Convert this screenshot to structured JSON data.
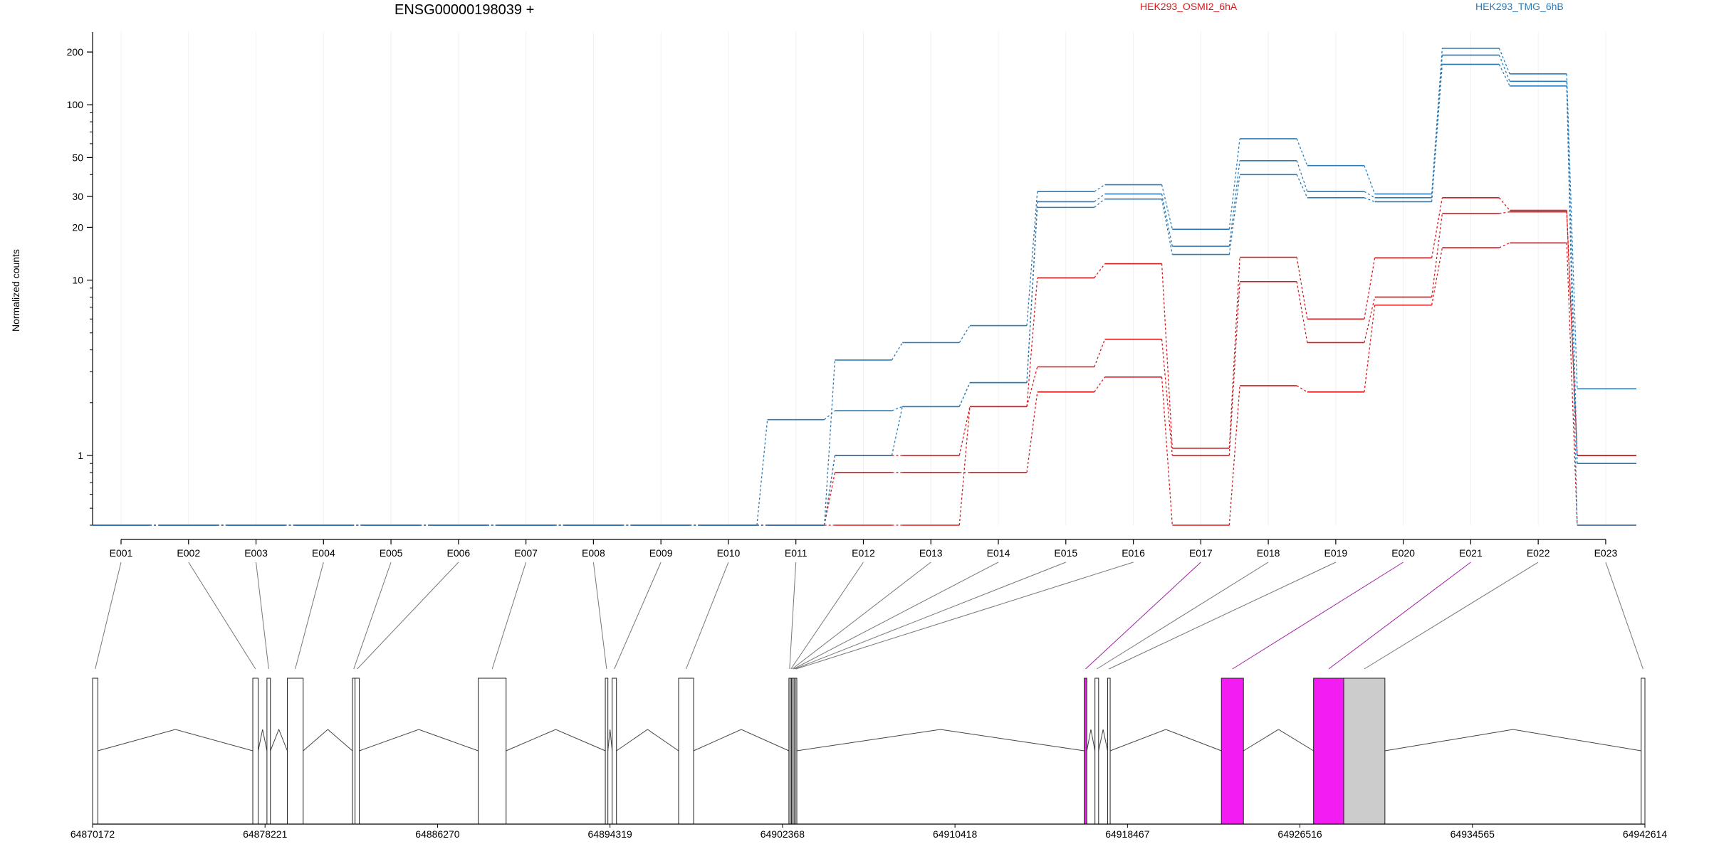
{
  "chart_data": {
    "type": "line",
    "title": "ENSG00000198039 +",
    "ylabel": "Normalized counts",
    "yscale": "log",
    "ylim": [
      0.4,
      260
    ],
    "y_ticks": [
      1,
      10,
      20,
      30,
      50,
      100,
      200
    ],
    "y_tick_labels": [
      "1",
      "10",
      "20",
      "30",
      "50",
      "100",
      "200"
    ],
    "categories": [
      "E001",
      "E002",
      "E003",
      "E004",
      "E005",
      "E006",
      "E007",
      "E008",
      "E009",
      "E010",
      "E011",
      "E012",
      "E013",
      "E014",
      "E015",
      "E016",
      "E017",
      "E018",
      "E019",
      "E020",
      "E021",
      "E022",
      "E023"
    ],
    "groups": [
      {
        "name": "HEK293_OSMI2_6hA",
        "color": "#d7191c"
      },
      {
        "name": "HEK293_TMG_6hB",
        "color": "#2c7bb6"
      }
    ],
    "series": [
      {
        "group": 1,
        "values": [
          0.4,
          0.4,
          0.4,
          0.4,
          0.4,
          0.4,
          0.4,
          0.4,
          0.4,
          0.4,
          0.4,
          0.8,
          0.8,
          0.8,
          2.3,
          2.8,
          0.4,
          2.5,
          2.3,
          7.2,
          15.3,
          16.3,
          0.4
        ]
      },
      {
        "group": 1,
        "values": [
          0.4,
          0.4,
          0.4,
          0.4,
          0.4,
          0.4,
          0.4,
          0.4,
          0.4,
          0.4,
          0.4,
          0.4,
          0.4,
          1.9,
          3.2,
          4.6,
          1.0,
          9.8,
          4.4,
          8.0,
          24.0,
          24.5,
          1.0
        ]
      },
      {
        "group": 1,
        "values": [
          0.4,
          0.4,
          0.4,
          0.4,
          0.4,
          0.4,
          0.4,
          0.4,
          0.4,
          0.4,
          0.4,
          1.0,
          1.0,
          1.9,
          10.3,
          12.4,
          1.1,
          13.5,
          6.0,
          13.4,
          29.5,
          25.0,
          1.0
        ]
      },
      {
        "group": 2,
        "values": [
          0.4,
          0.4,
          0.4,
          0.4,
          0.4,
          0.4,
          0.4,
          0.4,
          0.4,
          0.4,
          1.6,
          1.8,
          1.9,
          2.6,
          26.0,
          29.0,
          14.0,
          40.0,
          29.5,
          28.0,
          170,
          128,
          0.4
        ]
      },
      {
        "group": 2,
        "values": [
          0.4,
          0.4,
          0.4,
          0.4,
          0.4,
          0.4,
          0.4,
          0.4,
          0.4,
          0.4,
          0.4,
          1.0,
          1.9,
          2.6,
          28.0,
          31.0,
          15.6,
          48.0,
          32.0,
          29.5,
          192,
          136,
          0.9
        ]
      },
      {
        "group": 2,
        "values": [
          0.4,
          0.4,
          0.4,
          0.4,
          0.4,
          0.4,
          0.4,
          0.4,
          0.4,
          0.4,
          0.4,
          3.5,
          4.4,
          5.5,
          32.0,
          35.0,
          19.5,
          64.0,
          45.0,
          31.0,
          210,
          150,
          2.4
        ]
      }
    ],
    "gene_model": {
      "coord_ticks": [
        64870172,
        64878221,
        64886270,
        64894319,
        64902368,
        64910418,
        64918467,
        64926516,
        64934565,
        64942614
      ],
      "exons": [
        {
          "id": "E001",
          "start": 64870172,
          "end": 64870420,
          "fill": "none"
        },
        {
          "id": "E002",
          "start": 64877650,
          "end": 64877900,
          "fill": "none"
        },
        {
          "id": "E003",
          "start": 64878310,
          "end": 64878470,
          "fill": "none"
        },
        {
          "id": "E004",
          "start": 64879260,
          "end": 64880000,
          "fill": "none"
        },
        {
          "id": "E005",
          "start": 64882300,
          "end": 64882420,
          "fill": "none"
        },
        {
          "id": "E006",
          "start": 64882420,
          "end": 64882620,
          "fill": "none"
        },
        {
          "id": "E007",
          "start": 64888170,
          "end": 64889470,
          "fill": "none"
        },
        {
          "id": "E008",
          "start": 64894100,
          "end": 64894220,
          "fill": "none"
        },
        {
          "id": "E009",
          "start": 64894420,
          "end": 64894620,
          "fill": "none"
        },
        {
          "id": "E010",
          "start": 64897520,
          "end": 64898220,
          "fill": "none"
        },
        {
          "id": "E011",
          "start": 64902668,
          "end": 64902730,
          "fill": "none"
        },
        {
          "id": "E012",
          "start": 64902730,
          "end": 64902790,
          "fill": "none"
        },
        {
          "id": "E013",
          "start": 64902790,
          "end": 64902850,
          "fill": "none"
        },
        {
          "id": "E014",
          "start": 64902850,
          "end": 64902910,
          "fill": "none"
        },
        {
          "id": "E015",
          "start": 64902910,
          "end": 64902970,
          "fill": "none"
        },
        {
          "id": "E016",
          "start": 64902970,
          "end": 64903030,
          "fill": "none"
        },
        {
          "id": "E017",
          "start": 64916450,
          "end": 64916570,
          "fill": "#f31cf3"
        },
        {
          "id": "E018",
          "start": 64916950,
          "end": 64917120,
          "fill": "none"
        },
        {
          "id": "E019",
          "start": 64917540,
          "end": 64917660,
          "fill": "none"
        },
        {
          "id": "E020",
          "start": 64922850,
          "end": 64923880,
          "fill": "#f31cf3"
        },
        {
          "id": "E021",
          "start": 64927150,
          "end": 64928560,
          "fill": "#f31cf3"
        },
        {
          "id": "E022",
          "start": 64928560,
          "end": 64930480,
          "fill": "#cccccc"
        },
        {
          "id": "E023",
          "start": 64942440,
          "end": 64942614,
          "fill": "none"
        }
      ],
      "highlighted_exons": [
        "E017",
        "E020",
        "E021"
      ],
      "highlight_color": "#a020a0"
    }
  }
}
